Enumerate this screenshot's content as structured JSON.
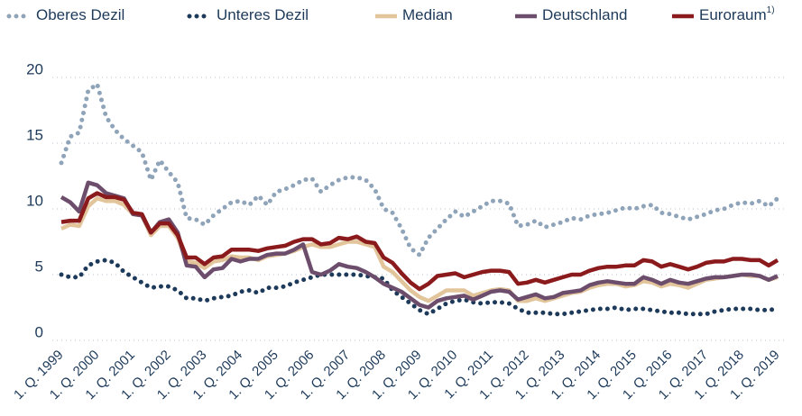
{
  "chart_data": {
    "type": "line",
    "categories": [
      "1. Q. 1999",
      null,
      null,
      null,
      "1. Q. 2000",
      null,
      null,
      null,
      "1. Q. 2001",
      null,
      null,
      null,
      "1. Q. 2002",
      null,
      null,
      null,
      "1. Q. 2003",
      null,
      null,
      null,
      "1. Q. 2004",
      null,
      null,
      null,
      "1. Q. 2005",
      null,
      null,
      null,
      "1. Q. 2006",
      null,
      null,
      null,
      "1. Q. 2007",
      null,
      null,
      null,
      "1. Q. 2008",
      null,
      null,
      null,
      "1. Q. 2009",
      null,
      null,
      null,
      "1. Q. 2010",
      null,
      null,
      null,
      "1. Q. 2011",
      null,
      null,
      null,
      "1. Q. 2012",
      null,
      null,
      null,
      "1. Q. 2013",
      null,
      null,
      null,
      "1. Q. 2014",
      null,
      null,
      null,
      "1. Q. 2015",
      null,
      null,
      null,
      "1. Q. 2016",
      null,
      null,
      null,
      "1. Q. 2017",
      null,
      null,
      null,
      "1. Q. 2018",
      null,
      null,
      null,
      "1. Q. 2019"
    ],
    "ylim": [
      0,
      20
    ],
    "yticks": [
      0,
      5,
      10,
      15,
      20
    ],
    "grid": true,
    "legend": "top",
    "series": [
      {
        "name": "Oberes Dezil",
        "color": "#8fa3b9",
        "dash": "dotted",
        "values": [
          13.5,
          15.5,
          15.8,
          19.0,
          19.5,
          17,
          16,
          15.3,
          14.8,
          14.3,
          12.2,
          13.7,
          12.8,
          12,
          9.3,
          9.2,
          8.8,
          9.5,
          10.0,
          10.5,
          10.6,
          10.3,
          11.0,
          10.3,
          11.3,
          11.5,
          11.8,
          12.2,
          12.3,
          11.3,
          11.8,
          12.2,
          12.4,
          12.4,
          12.2,
          11.5,
          10.0,
          9.7,
          8.5,
          7.0,
          6.5,
          7.8,
          8.5,
          9.2,
          9.8,
          9.4,
          9.8,
          10.2,
          10.6,
          10.6,
          10.4,
          8.7,
          8.8,
          9.1,
          8.6,
          8.8,
          9.0,
          9.3,
          9.2,
          9.5,
          9.6,
          9.7,
          9.9,
          10.1,
          10.0,
          10.2,
          10.3,
          9.7,
          9.6,
          9.4,
          9.2,
          9.4,
          9.6,
          9.9,
          10.0,
          10.3,
          10.5,
          10.4,
          10.6,
          10.2,
          10.8
        ]
      },
      {
        "name": "Unteres Dezil",
        "color": "#1d3a5a",
        "dash": "dotted",
        "values": [
          5.0,
          4.8,
          4.8,
          5.7,
          6.0,
          6.1,
          5.9,
          5.2,
          4.8,
          4.4,
          4.0,
          4.1,
          4.1,
          3.8,
          3.2,
          3.2,
          3.0,
          3.2,
          3.3,
          3.4,
          3.7,
          3.8,
          3.6,
          4.0,
          4.0,
          4.1,
          4.4,
          4.6,
          4.8,
          5.0,
          5.0,
          5.0,
          5.0,
          5.0,
          4.9,
          4.8,
          4.7,
          3.8,
          3.3,
          2.8,
          2.3,
          2.0,
          2.4,
          2.8,
          3.0,
          3.1,
          2.9,
          2.8,
          2.9,
          2.9,
          2.8,
          2.4,
          2.1,
          2.1,
          2.1,
          2.0,
          2.0,
          2.1,
          2.2,
          2.3,
          2.4,
          2.4,
          2.5,
          2.3,
          2.4,
          2.4,
          2.3,
          2.2,
          2.1,
          2.1,
          2.0,
          2.0,
          2.0,
          2.2,
          2.3,
          2.4,
          2.4,
          2.4,
          2.3,
          2.3,
          2.4
        ]
      },
      {
        "name": "Median",
        "color": "#e3c59c",
        "dash": "solid",
        "values": [
          8.5,
          8.8,
          8.7,
          10.2,
          10.8,
          10.6,
          10.6,
          10.3,
          9.6,
          9.5,
          8.0,
          8.7,
          8.7,
          7.8,
          6.0,
          5.9,
          5.5,
          6.0,
          6.1,
          6.4,
          6.3,
          6.3,
          6.1,
          6.4,
          6.5,
          6.6,
          6.8,
          7.1,
          7.3,
          7.1,
          7.1,
          7.3,
          7.5,
          7.5,
          7.3,
          7.1,
          5.6,
          5.2,
          4.5,
          3.8,
          3.3,
          3.0,
          3.4,
          3.8,
          3.8,
          3.8,
          3.4,
          3.6,
          3.8,
          3.9,
          3.8,
          3.0,
          3.0,
          3.2,
          3.0,
          3.2,
          3.4,
          3.6,
          3.7,
          4.0,
          4.2,
          4.3,
          4.3,
          4.1,
          4.2,
          4.5,
          4.4,
          4.1,
          4.3,
          4.2,
          4.0,
          4.3,
          4.6,
          4.7,
          4.8,
          4.9,
          5.0,
          4.9,
          4.9,
          4.6,
          4.8
        ]
      },
      {
        "name": "Deutschland",
        "color": "#6d4d6c",
        "dash": "solid",
        "values": [
          10.9,
          10.5,
          9.8,
          12.0,
          11.8,
          11.2,
          11.0,
          10.8,
          9.6,
          9.5,
          8.2,
          9.0,
          9.2,
          8.2,
          5.7,
          5.6,
          4.8,
          5.4,
          5.5,
          6.2,
          6.0,
          6.2,
          6.2,
          6.5,
          6.6,
          6.6,
          6.9,
          7.3,
          5.2,
          5.0,
          5.3,
          5.8,
          5.6,
          5.5,
          5.2,
          4.8,
          4.3,
          4.0,
          3.7,
          3.2,
          2.7,
          2.5,
          3.0,
          3.2,
          3.3,
          3.4,
          3.1,
          3.4,
          3.7,
          3.8,
          3.7,
          3.1,
          3.3,
          3.5,
          3.2,
          3.3,
          3.6,
          3.7,
          3.8,
          4.2,
          4.4,
          4.5,
          4.4,
          4.3,
          4.3,
          4.8,
          4.6,
          4.3,
          4.6,
          4.4,
          4.3,
          4.5,
          4.7,
          4.8,
          4.8,
          4.9,
          5.0,
          5.0,
          4.9,
          4.6,
          4.9
        ]
      },
      {
        "name": "Euroraum",
        "footnote_marker": "1)",
        "color": "#8b1a1c",
        "dash": "solid",
        "values": [
          9.0,
          9.1,
          9.1,
          10.8,
          11.2,
          10.9,
          10.9,
          10.7,
          9.7,
          9.6,
          8.2,
          8.9,
          8.9,
          8.0,
          6.3,
          6.3,
          5.8,
          6.3,
          6.4,
          6.9,
          6.9,
          6.9,
          6.8,
          7.0,
          7.1,
          7.2,
          7.5,
          7.7,
          7.7,
          7.3,
          7.4,
          7.8,
          7.7,
          7.9,
          7.5,
          7.4,
          6.3,
          5.9,
          5.1,
          4.4,
          3.9,
          4.3,
          4.9,
          5.0,
          5.1,
          4.8,
          5.0,
          5.2,
          5.3,
          5.3,
          5.2,
          4.3,
          4.4,
          4.6,
          4.4,
          4.6,
          4.8,
          5.0,
          5.0,
          5.3,
          5.5,
          5.6,
          5.6,
          5.7,
          5.7,
          6.1,
          6.0,
          5.6,
          5.8,
          5.6,
          5.4,
          5.6,
          5.9,
          6.0,
          6.0,
          6.2,
          6.2,
          6.1,
          6.1,
          5.7,
          6.1
        ]
      }
    ]
  }
}
